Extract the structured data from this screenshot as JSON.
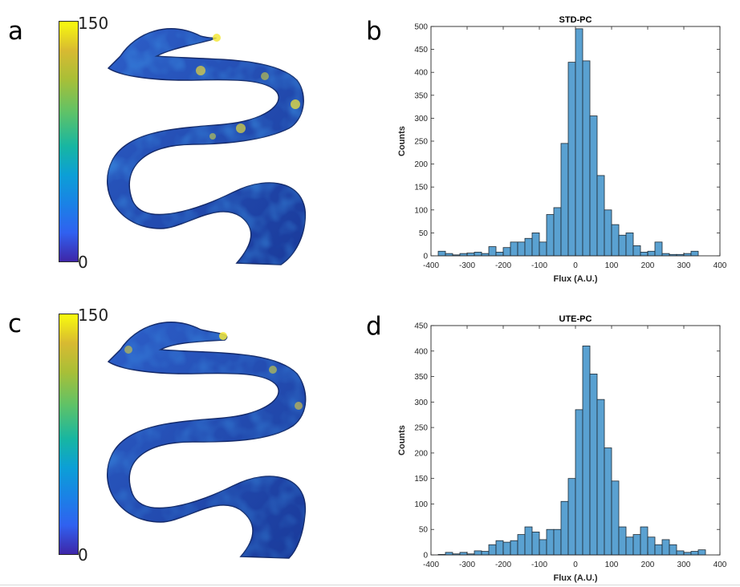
{
  "panel_letters": {
    "a": "a",
    "b": "b",
    "c": "c",
    "d": "d"
  },
  "colorbars": [
    {
      "max_label": "150",
      "min_label": "0"
    },
    {
      "max_label": "150",
      "min_label": "0"
    }
  ],
  "colors": {
    "bar_fill": "#5aa1d1",
    "bar_edge": "#1f2a33",
    "axis": "#262626"
  },
  "chart_data": [
    {
      "type": "bar",
      "title": "STD-PC",
      "xlabel": "Flux (A.U.)",
      "ylabel": "Counts",
      "xlim": [
        -400,
        400
      ],
      "ylim": [
        0,
        500
      ],
      "xticks": [
        -400,
        -300,
        -200,
        -100,
        0,
        100,
        200,
        300,
        400
      ],
      "yticks": [
        0,
        50,
        100,
        150,
        200,
        250,
        300,
        350,
        400,
        450,
        500
      ],
      "bin_width": 20,
      "bin_start": -380,
      "values": [
        10,
        5,
        2,
        5,
        6,
        8,
        5,
        20,
        8,
        18,
        30,
        30,
        38,
        50,
        30,
        90,
        105,
        245,
        422,
        495,
        425,
        305,
        175,
        100,
        68,
        45,
        50,
        22,
        8,
        10,
        30,
        5,
        3,
        3,
        5,
        10
      ],
      "grid": false
    },
    {
      "type": "bar",
      "title": "UTE-PC",
      "xlabel": "Flux (A.U.)",
      "ylabel": "Counts",
      "xlim": [
        -400,
        400
      ],
      "ylim": [
        0,
        450
      ],
      "xticks": [
        -400,
        -300,
        -200,
        -100,
        0,
        100,
        200,
        300,
        400
      ],
      "yticks": [
        0,
        50,
        100,
        150,
        200,
        250,
        300,
        350,
        400,
        450
      ],
      "bin_width": 20,
      "bin_start": -380,
      "values": [
        1,
        5,
        2,
        5,
        2,
        8,
        7,
        20,
        28,
        25,
        28,
        40,
        55,
        45,
        30,
        50,
        50,
        105,
        150,
        285,
        410,
        355,
        305,
        210,
        145,
        55,
        35,
        40,
        55,
        35,
        20,
        30,
        20,
        8,
        5,
        7,
        10
      ],
      "grid": false
    }
  ]
}
